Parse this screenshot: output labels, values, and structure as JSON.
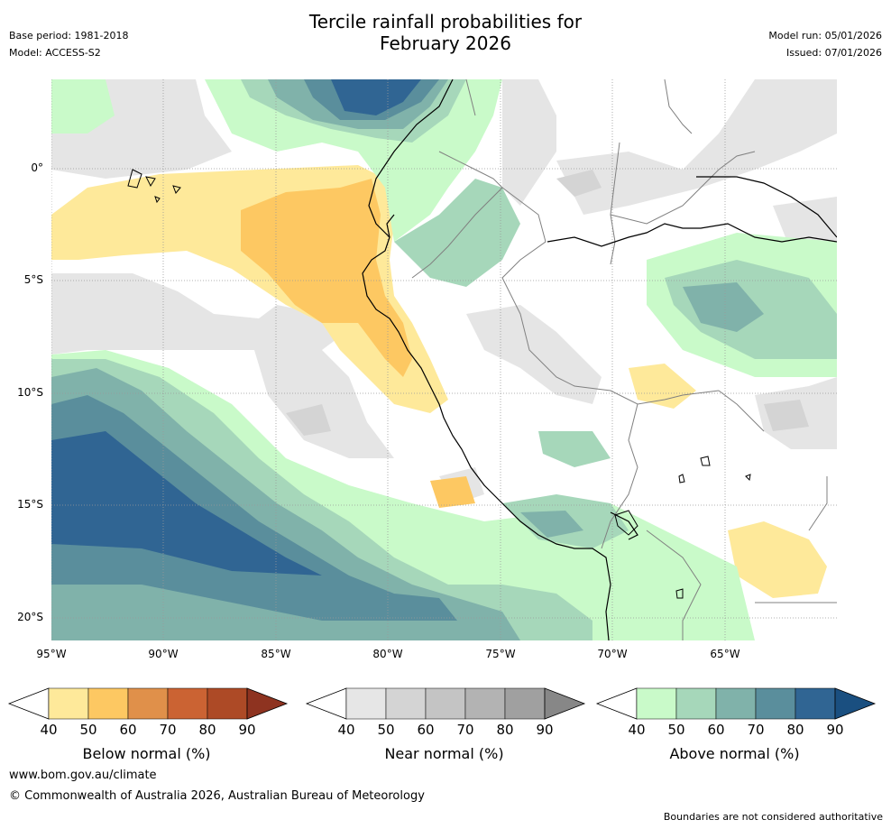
{
  "title_line1": "Tercile rainfall probabilities for",
  "title_line2": "February 2026",
  "base_period": "Base period: 1981-2018",
  "model": "Model: ACCESS-S2",
  "model_run": "Model run: 05/01/2026",
  "issued": "Issued: 07/01/2026",
  "map": {
    "lat_labels": [
      "0°",
      "5°S",
      "10°S",
      "15°S",
      "20°S"
    ],
    "lon_labels": [
      "95°W",
      "90°W",
      "85°W",
      "80°W",
      "75°W",
      "70°W",
      "65°W"
    ],
    "extent": {
      "lon_min": -95,
      "lon_max": -60,
      "lat_max": 4,
      "lat_min": -21
    }
  },
  "colorbars": [
    {
      "label": "Below normal (%)",
      "ticks": [
        "40",
        "50",
        "60",
        "70",
        "80",
        "90"
      ],
      "colors": [
        "#ffffff",
        "#fee99a",
        "#fdc862",
        "#e0904a",
        "#cb6333",
        "#ad4a26",
        "#8e3320"
      ]
    },
    {
      "label": "Near normal (%)",
      "ticks": [
        "40",
        "50",
        "60",
        "70",
        "80",
        "90"
      ],
      "colors": [
        "#ffffff",
        "#e6e6e6",
        "#d4d4d4",
        "#c4c4c4",
        "#b3b3b3",
        "#a0a0a0",
        "#878787"
      ]
    },
    {
      "label": "Above normal (%)",
      "ticks": [
        "40",
        "50",
        "60",
        "70",
        "80",
        "90"
      ],
      "colors": [
        "#ffffff",
        "#c9fac9",
        "#a6d7ba",
        "#80b2aa",
        "#5a8e9c",
        "#306593",
        "#1a4f80"
      ]
    }
  ],
  "footer": {
    "url": "www.bom.gov.au/climate",
    "copyright": "© Commonwealth of Australia 2026, Australian Bureau of Meteorology",
    "disclaimer": "Boundaries are not considered authoritative"
  }
}
